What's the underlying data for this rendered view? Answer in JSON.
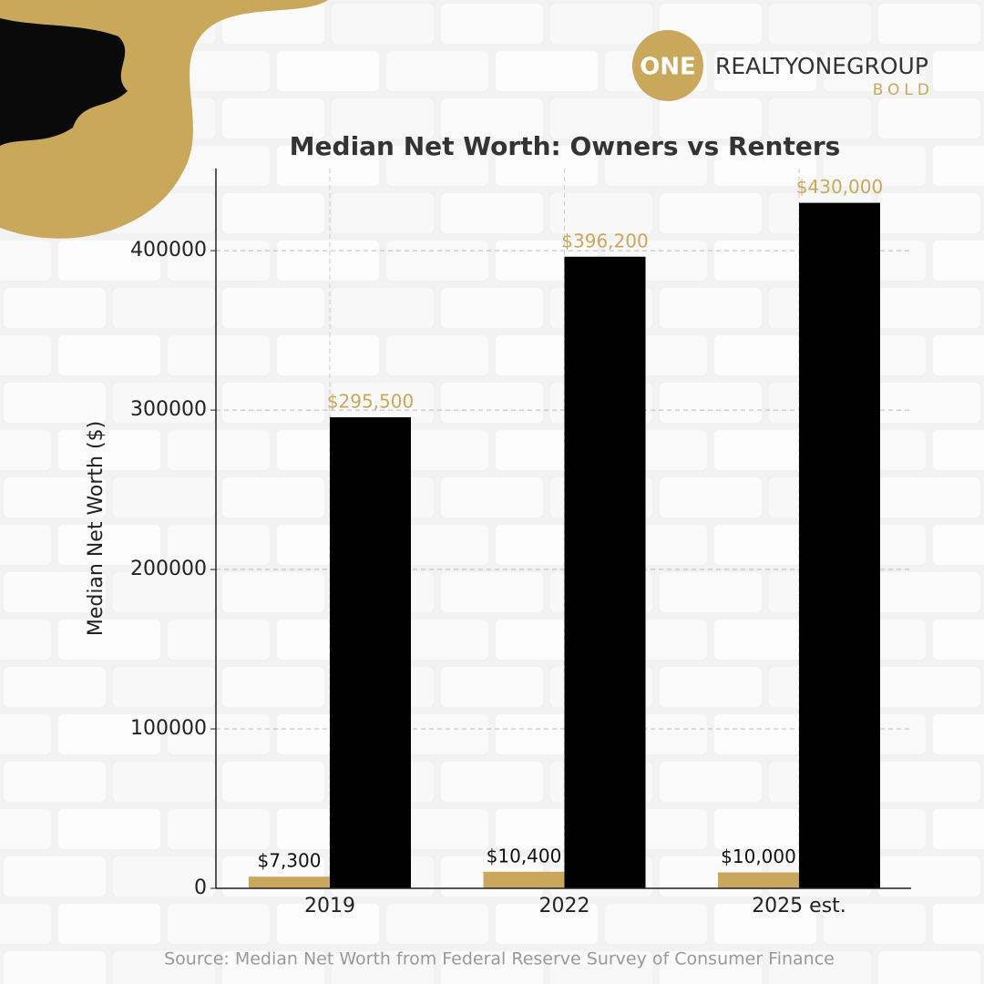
{
  "brand": {
    "mark": "ONE",
    "name": "REALTYONEGROUP",
    "tagline": "BOLD"
  },
  "source": "Source: Median Net Worth from Federal Reserve Survey of Consumer Finance",
  "chart_data": {
    "type": "bar",
    "title": "Median Net Worth: Owners vs Renters",
    "y_label": "Median Net Worth ($)",
    "categories": [
      "2019",
      "2022",
      "2025 est."
    ],
    "series": [
      {
        "color": "#c9a85c",
        "label_color": "#111111",
        "values": [
          7300,
          10400,
          10000
        ],
        "value_labels": [
          "$7,300",
          "$10,400",
          "$10,000"
        ]
      },
      {
        "color": "#000000",
        "label_color": "#c9a85c",
        "values": [
          295500,
          396200,
          430000
        ],
        "value_labels": [
          "$295,500",
          "$396,200",
          "$430,000"
        ]
      }
    ],
    "ylim": [
      0,
      451500
    ],
    "yticks": [
      0,
      100000,
      200000,
      300000,
      400000
    ],
    "grid": true
  }
}
